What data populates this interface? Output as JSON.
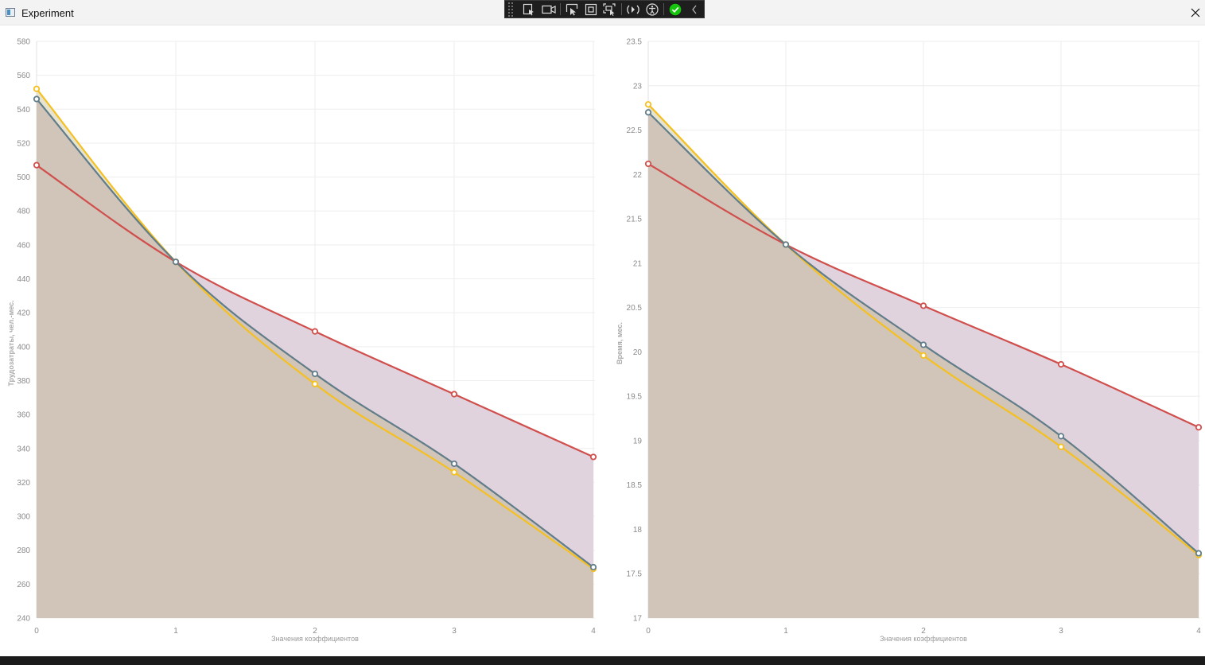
{
  "window": {
    "title": "Experiment",
    "app_icon": "window-app-icon",
    "close_icon": "close-icon"
  },
  "devtools": {
    "tools": [
      "select-element-icon",
      "video-record-icon",
      "pointer-select-icon",
      "layout-bounds-icon",
      "pointer-track-icon",
      "hot-reload-icon",
      "accessibility-icon",
      "check-icon",
      "collapse-chevron-icon"
    ],
    "check_color": "#16c60c"
  },
  "chart_data": [
    {
      "type": "area",
      "title": "",
      "xlabel": "Значения коэффициентов",
      "ylabel": "Трудозатраты, чел.-мес.",
      "x": [
        0,
        1,
        2,
        3,
        4
      ],
      "ylim": [
        240,
        580
      ],
      "yticks": [
        240,
        260,
        280,
        300,
        320,
        340,
        360,
        380,
        400,
        420,
        440,
        460,
        480,
        500,
        520,
        540,
        560,
        580
      ],
      "ytick_labels": [
        "240",
        "260",
        "280",
        "300",
        "320",
        "340",
        "360",
        "380",
        "400",
        "420",
        "440",
        "460",
        "480",
        "500",
        "520",
        "540",
        "560",
        "580"
      ],
      "xtick_labels": [
        "0",
        "1",
        "2",
        "3",
        "4"
      ],
      "grid": true,
      "series": [
        {
          "values": [
            507,
            450,
            409,
            372,
            335
          ],
          "color": "#d04f4d",
          "fill": "#e0d3de"
        },
        {
          "values": [
            552,
            450,
            378,
            326,
            269
          ],
          "color": "#f5c020",
          "fill": "#e6e3d0"
        },
        {
          "values": [
            546,
            450,
            384,
            331,
            270
          ],
          "color": "#617d8a",
          "fill": "#d1c4b8"
        }
      ]
    },
    {
      "type": "area",
      "title": "",
      "xlabel": "Значения коэффициентов",
      "ylabel": "Время, мес.",
      "x": [
        0,
        1,
        2,
        3,
        4
      ],
      "ylim": [
        17,
        23.5
      ],
      "yticks": [
        17,
        17.5,
        18,
        18.5,
        19,
        19.5,
        20,
        20.5,
        21,
        21.5,
        22,
        22.5,
        23,
        23.5
      ],
      "ytick_labels": [
        "17",
        "17.5",
        "18",
        "18.5",
        "19",
        "19.5",
        "20",
        "20.5",
        "21",
        "21.5",
        "22",
        "22.5",
        "23",
        "23.5"
      ],
      "xtick_labels": [
        "0",
        "1",
        "2",
        "3",
        "4"
      ],
      "grid": true,
      "series": [
        {
          "values": [
            22.12,
            21.21,
            20.52,
            19.86,
            19.15
          ],
          "color": "#d04f4d",
          "fill": "#e0d3de"
        },
        {
          "values": [
            22.79,
            21.21,
            19.96,
            18.93,
            17.71
          ],
          "color": "#f5c020",
          "fill": "#e6e3d0"
        },
        {
          "values": [
            22.7,
            21.21,
            20.08,
            19.05,
            17.73
          ],
          "color": "#617d8a",
          "fill": "#d1c4b8"
        }
      ]
    }
  ]
}
